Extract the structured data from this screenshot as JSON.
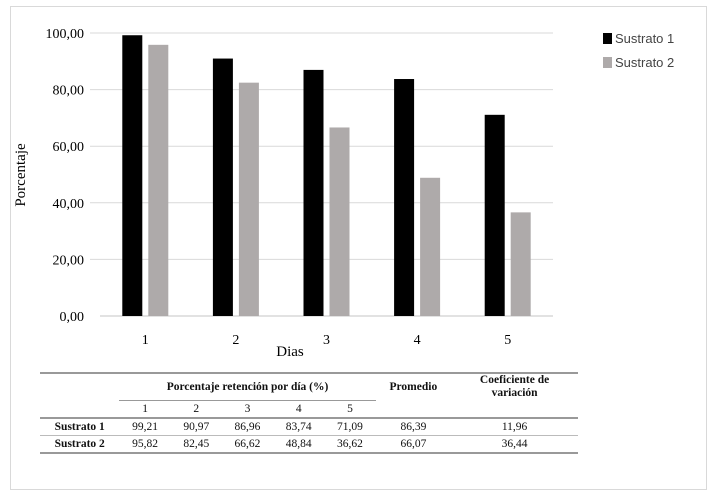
{
  "chart_data": {
    "type": "bar",
    "title": "",
    "xlabel": "Dias",
    "ylabel": "Porcentaje",
    "ylim": [
      0,
      100
    ],
    "yticks": [
      "0,00",
      "20,00",
      "40,00",
      "60,00",
      "80,00",
      "100,00"
    ],
    "categories": [
      "1",
      "2",
      "3",
      "4",
      "5"
    ],
    "series": [
      {
        "name": "Sustrato 1",
        "color": "#000000",
        "values": [
          99.21,
          90.97,
          86.96,
          83.74,
          71.09
        ]
      },
      {
        "name": "Sustrato 2",
        "color": "#aeaaaa",
        "values": [
          95.82,
          82.45,
          66.62,
          48.84,
          36.62
        ]
      }
    ],
    "grid": true,
    "legend": "top-right"
  },
  "table": {
    "group_header": "Porcentaje retención por día (%)",
    "days": [
      "1",
      "2",
      "3",
      "4",
      "5"
    ],
    "avg_header": "Promedio",
    "cv_header": "Coeficiente de variación",
    "rows": [
      {
        "label": "Sustrato 1",
        "values": [
          "99,21",
          "90,97",
          "86,96",
          "83,74",
          "71,09"
        ],
        "avg": "86,39",
        "cv": "11,96"
      },
      {
        "label": "Sustrato 2",
        "values": [
          "95,82",
          "82,45",
          "66,62",
          "48,84",
          "36,62"
        ],
        "avg": "66,07",
        "cv": "36,44"
      }
    ]
  }
}
